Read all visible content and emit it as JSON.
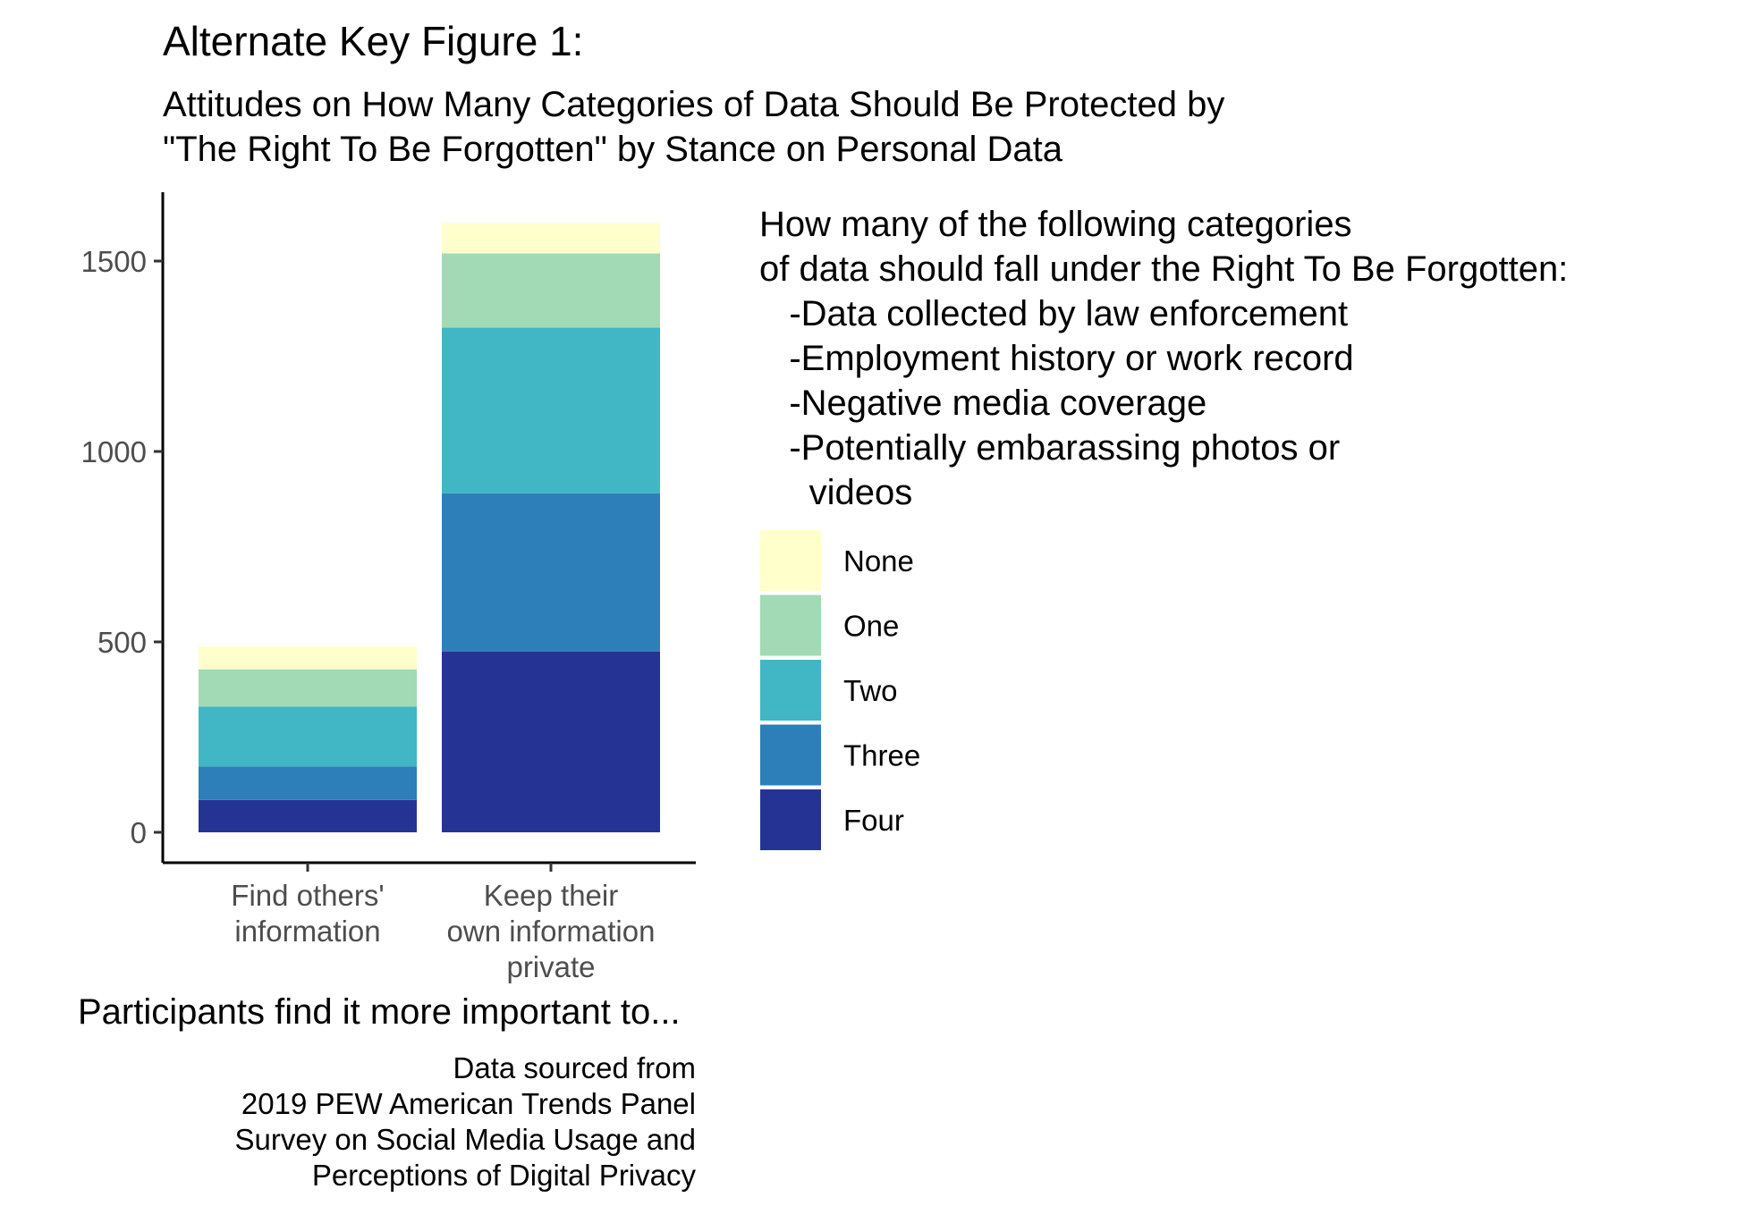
{
  "chart_data": {
    "type": "bar",
    "stacked": true,
    "title": "Alternate Key Figure 1:",
    "subtitle": [
      "Attitudes on How Many Categories of Data Should Be Protected by",
      "\"The Right To Be Forgotten\" by Stance on Personal Data"
    ],
    "xlabel": "Participants find it more important to...",
    "ylabel": "",
    "categories": [
      [
        "Find others'",
        "information"
      ],
      [
        "Keep their",
        "own information",
        "private"
      ]
    ],
    "ylim": [
      0,
      1620
    ],
    "yticks": [
      0,
      500,
      1000,
      1500
    ],
    "ytick_labels": [
      "0",
      "500",
      "1000",
      "1500"
    ],
    "series": [
      {
        "name": "Four",
        "color": "#253494",
        "values": [
          85,
          475
        ]
      },
      {
        "name": "Three",
        "color": "#2C7FB8",
        "values": [
          88,
          415
        ]
      },
      {
        "name": "Two",
        "color": "#41B6C4",
        "values": [
          157,
          435
        ]
      },
      {
        "name": "One",
        "color": "#A1DAB4",
        "values": [
          98,
          195
        ]
      },
      {
        "name": "None",
        "color": "#FFFFCC",
        "values": [
          60,
          80
        ]
      }
    ],
    "legend": {
      "title": [
        "How many of the following categories",
        "of data should fall under the Right To Be Forgotten:",
        "   -Data collected by law enforcement",
        "   -Employment history or work record",
        "   -Negative media coverage",
        "   -Potentially embarassing photos or",
        "     videos"
      ],
      "order": [
        "None",
        "One",
        "Two",
        "Three",
        "Four"
      ],
      "placement": "right"
    },
    "caption": [
      "Data sourced from",
      "2019 PEW American Trends Panel",
      "Survey on Social Media Usage and",
      "Perceptions of Digital Privacy"
    ]
  }
}
